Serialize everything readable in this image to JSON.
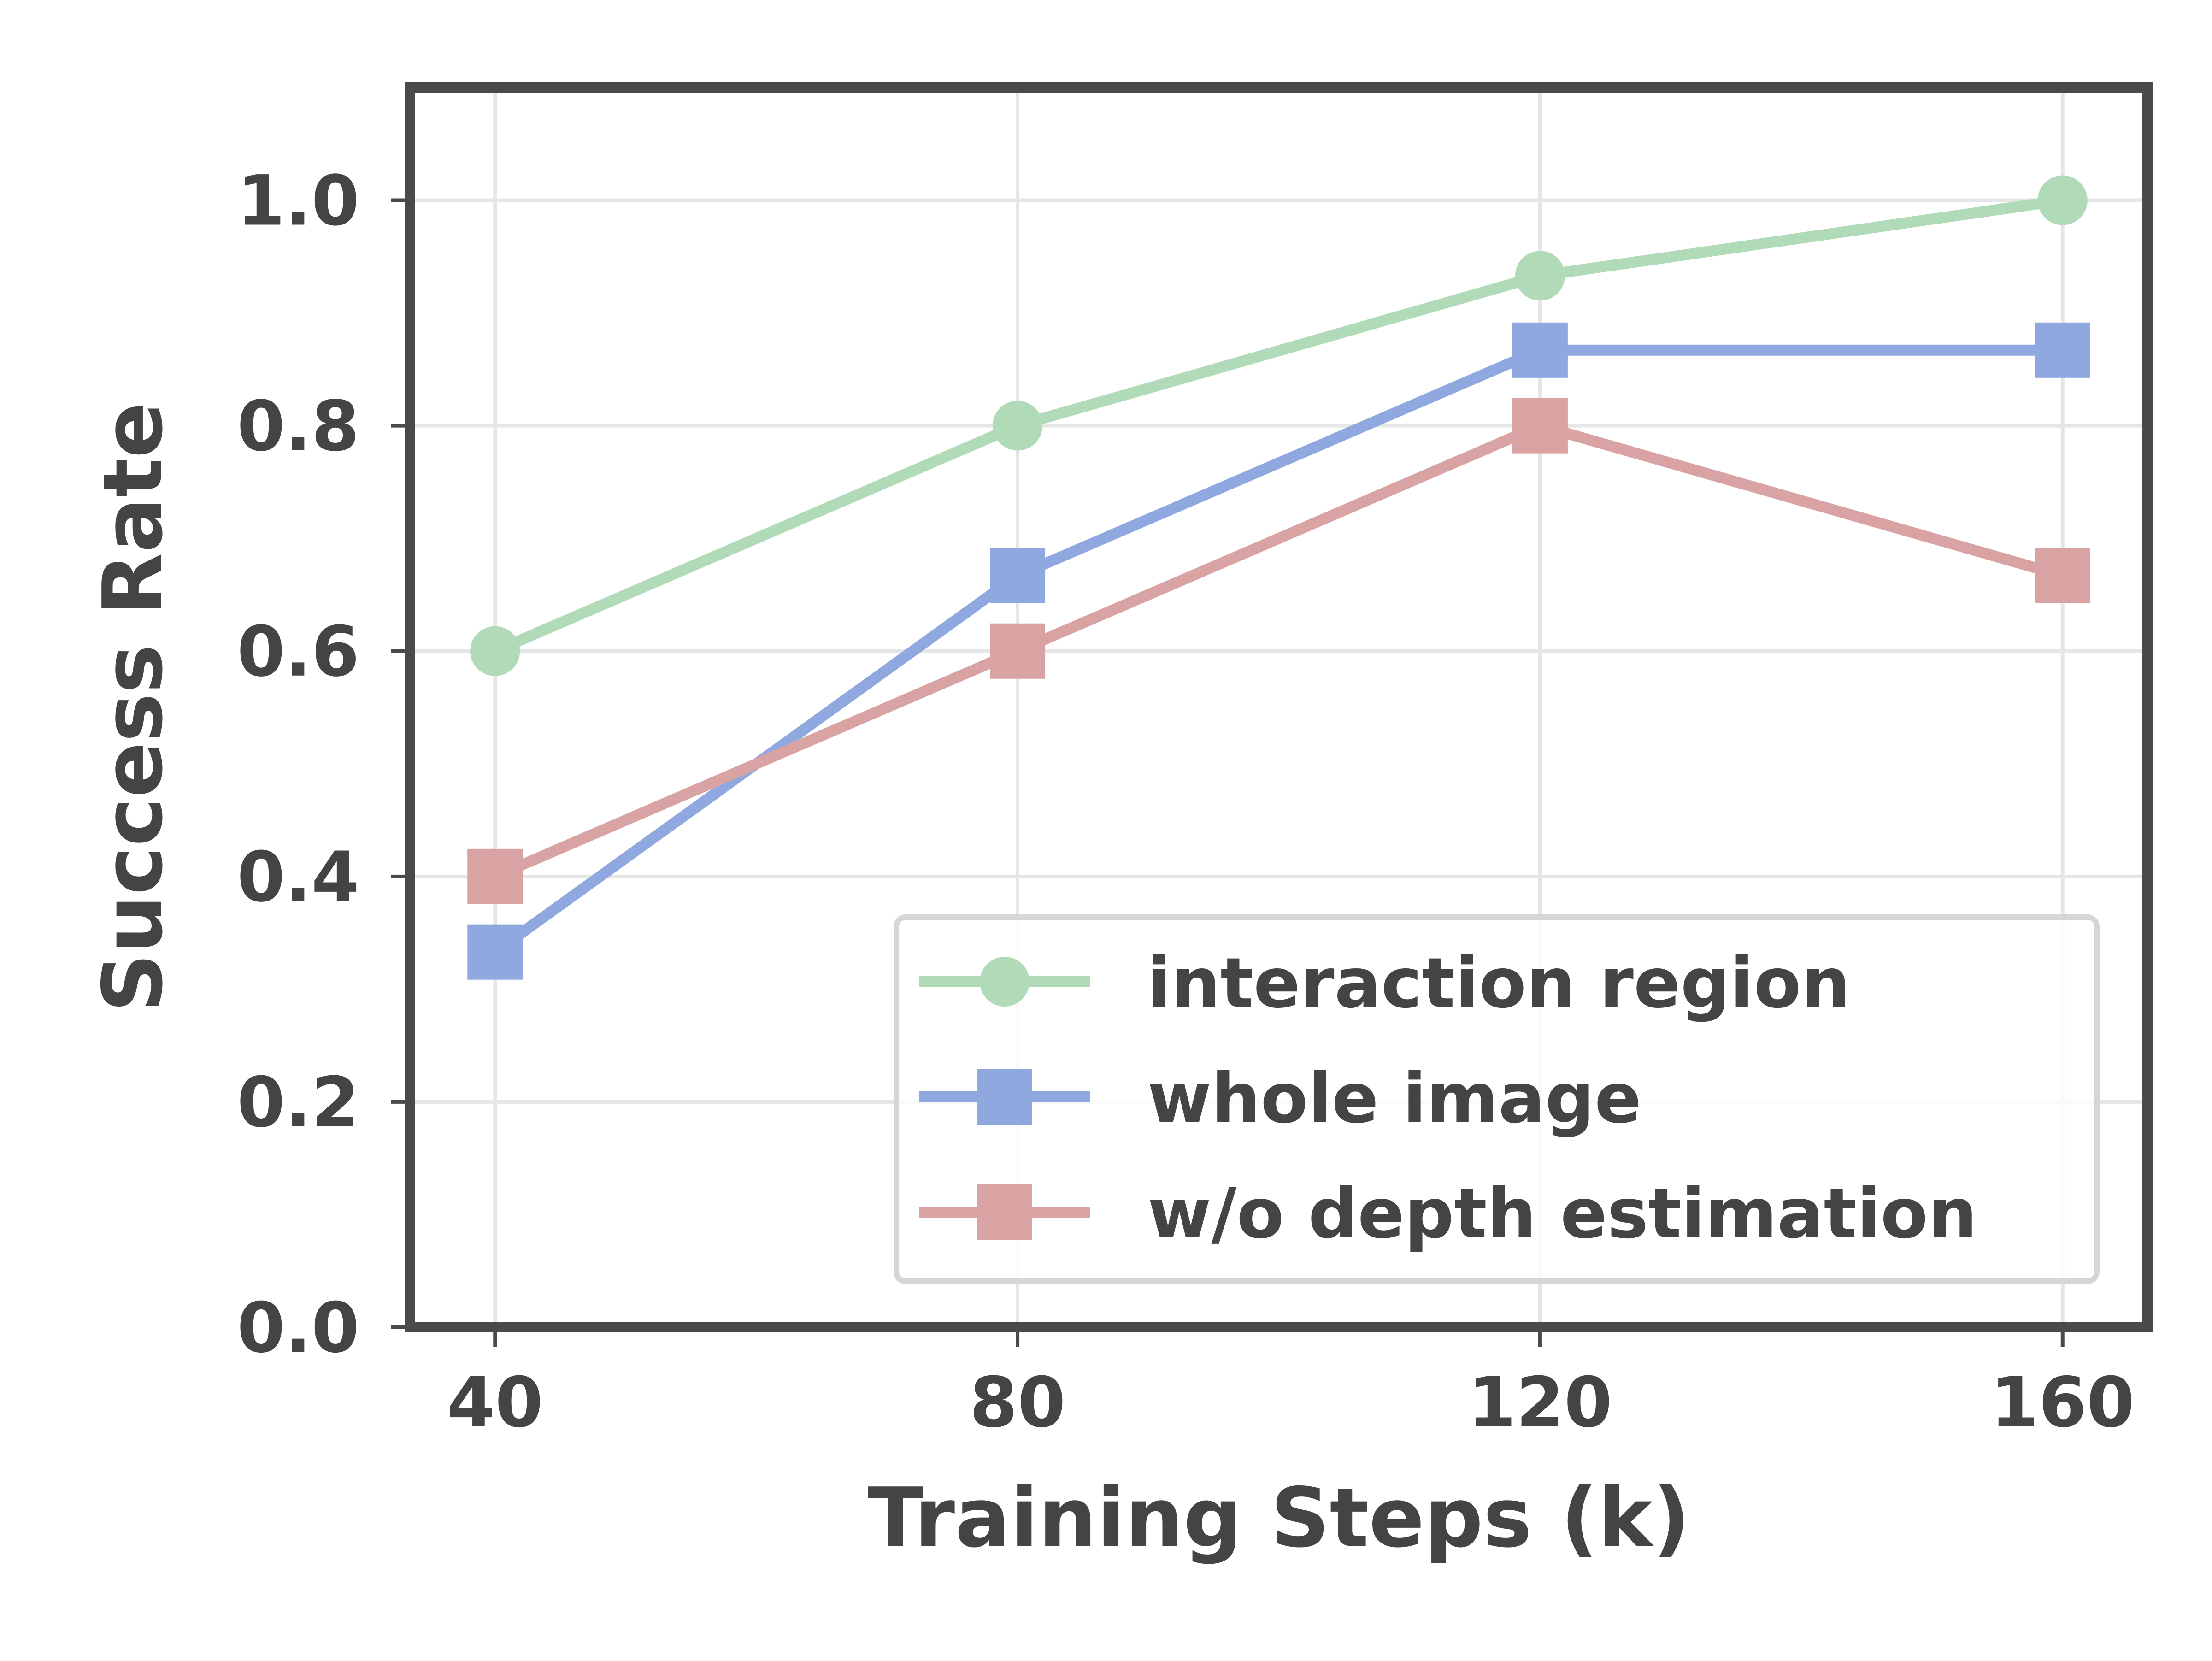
{
  "chart_data": {
    "type": "line",
    "x": [
      40,
      80,
      120,
      160
    ],
    "xticks": [
      "40",
      "80",
      "120",
      "160"
    ],
    "yticks": [
      "0.0",
      "0.2",
      "0.4",
      "0.6",
      "0.8",
      "1.0"
    ],
    "ytick_values": [
      0.0,
      0.2,
      0.4,
      0.6,
      0.8,
      1.0
    ],
    "xlabel": "Training Steps (k)",
    "ylabel": "Success Rate",
    "xlim": [
      33.5,
      166.5
    ],
    "ylim": [
      0.0,
      1.1
    ],
    "grid": true,
    "legend_position": "lower right",
    "series": [
      {
        "name": "interaction region",
        "values": [
          0.6,
          0.8,
          0.933,
          1.0
        ],
        "color": "#b1dbb8",
        "marker": "circle"
      },
      {
        "name": "whole image",
        "values": [
          0.333,
          0.667,
          0.867,
          0.867
        ],
        "color": "#8fa9e0",
        "marker": "square"
      },
      {
        "name": "w/o depth estimation",
        "values": [
          0.4,
          0.6,
          0.8,
          0.667
        ],
        "color": "#daa3a3",
        "marker": "square"
      }
    ]
  }
}
